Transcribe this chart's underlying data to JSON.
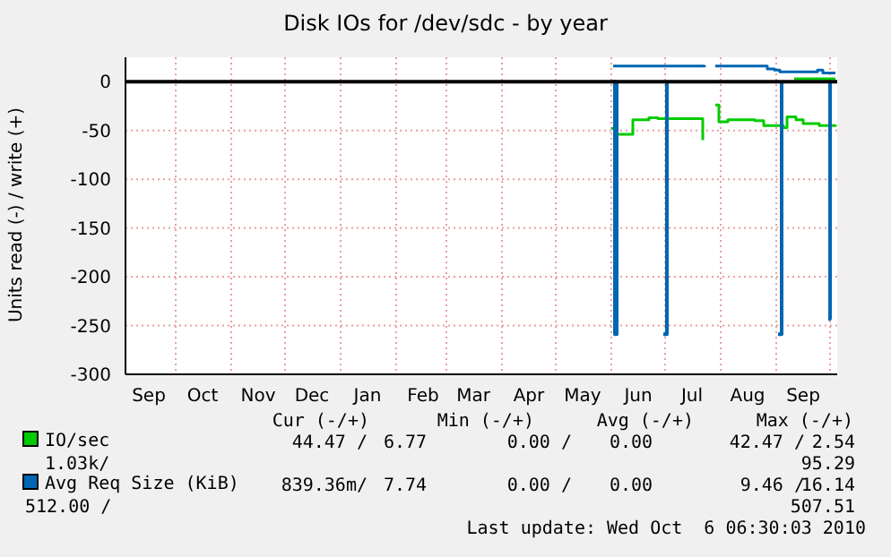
{
  "chart_data": {
    "type": "step",
    "title": "Disk IOs for /dev/sdc - by year",
    "ylabel": "Units read (-) / write (+)",
    "xlim": [
      "2009-09-03",
      "2010-10-05"
    ],
    "ylim": [
      -300,
      25
    ],
    "yticks": [
      -300,
      -250,
      -200,
      -150,
      -100,
      -50,
      0
    ],
    "xticks": [
      {
        "value": "2009-09-16",
        "label": "Sep"
      },
      {
        "value": "2009-10-01",
        "label": null
      },
      {
        "value": "2009-10-16",
        "label": "Oct"
      },
      {
        "value": "2009-11-01",
        "label": null
      },
      {
        "value": "2009-11-16",
        "label": "Nov"
      },
      {
        "value": "2009-12-01",
        "label": null
      },
      {
        "value": "2009-12-16",
        "label": "Dec"
      },
      {
        "value": "2010-01-01",
        "label": null
      },
      {
        "value": "2010-01-16",
        "label": "Jan"
      },
      {
        "value": "2010-02-01",
        "label": null
      },
      {
        "value": "2010-02-16",
        "label": "Feb"
      },
      {
        "value": "2010-03-01",
        "label": null
      },
      {
        "value": "2010-03-16",
        "label": "Mar"
      },
      {
        "value": "2010-04-01",
        "label": null
      },
      {
        "value": "2010-04-16",
        "label": "Apr"
      },
      {
        "value": "2010-05-01",
        "label": null
      },
      {
        "value": "2010-05-16",
        "label": "May"
      },
      {
        "value": "2010-06-01",
        "label": null
      },
      {
        "value": "2010-06-16",
        "label": "Jun"
      },
      {
        "value": "2010-07-01",
        "label": null
      },
      {
        "value": "2010-07-16",
        "label": "Jul"
      },
      {
        "value": "2010-08-01",
        "label": null
      },
      {
        "value": "2010-08-16",
        "label": "Aug"
      },
      {
        "value": "2010-09-01",
        "label": null
      },
      {
        "value": "2010-09-16",
        "label": "Sep"
      },
      {
        "value": "2010-10-01",
        "label": null
      }
    ],
    "grid": true,
    "legend": "bottom",
    "series": [
      {
        "name": "IO/sec",
        "color": "#00cc00",
        "x": [
          "2010-06-01",
          "2010-06-04",
          "2010-06-13",
          "2010-06-22",
          "2010-06-27",
          "2010-07-22",
          "2010-07-23",
          "2010-07-29",
          "2010-07-31",
          "2010-08-05",
          "2010-08-20",
          "2010-08-25",
          "2010-09-05",
          "2010-09-07",
          "2010-09-12",
          "2010-09-16",
          "2010-09-25",
          "2010-10-04"
        ],
        "values": [
          -48,
          -54,
          -39,
          -37,
          -38,
          -60,
          null,
          -24,
          -41,
          -39,
          -40,
          -45,
          -47,
          -36,
          -39,
          -43,
          -45,
          -44
        ]
      },
      {
        "color": "#00cc00",
        "x": [
          "2010-09-11",
          "2010-10-04"
        ],
        "values": [
          3,
          3
        ]
      },
      {
        "name": "Avg Req Size (KiB)",
        "color": "#0066b3",
        "x": [
          "2010-06-02",
          "2010-06-03",
          "2010-06-04",
          "2010-06-29",
          "2010-06-30",
          "2010-07-02",
          "2010-09-01",
          "2010-09-02",
          "2010-09-04",
          "2010-09-29",
          "2010-09-30",
          "2010-10-01"
        ],
        "values": [
          0,
          -259,
          0,
          null,
          -259,
          0,
          null,
          -259,
          0,
          null,
          -243,
          0
        ]
      },
      {
        "color": "#0066b3",
        "x": [
          "2010-06-02",
          "2010-07-23",
          "2010-07-24",
          "2010-07-29",
          "2010-08-27",
          "2010-08-31",
          "2010-09-03",
          "2010-09-20",
          "2010-09-24",
          "2010-09-27",
          "2010-10-04"
        ],
        "values": [
          16,
          17,
          null,
          16,
          13,
          12,
          10,
          10,
          12,
          9,
          9
        ]
      }
    ],
    "ref_lines": [
      {
        "axis": "y",
        "value": 0,
        "color": "#000000"
      }
    ],
    "annotations": [
      "Cur (-/+)",
      "Min (-/+)",
      "Avg (-/+)",
      "Max (-/+)",
      "44.47 /",
      "6.77",
      "0.00 /",
      "0.00",
      "42.47 /",
      "2.54",
      "1.03k/",
      "95.29",
      "839.36m/",
      "7.74",
      "0.00 /",
      "0.00",
      "9.46 /",
      "16.14",
      "512.00 /",
      "507.51",
      "Last update: Wed Oct  6 06:30:03 2010"
    ]
  }
}
